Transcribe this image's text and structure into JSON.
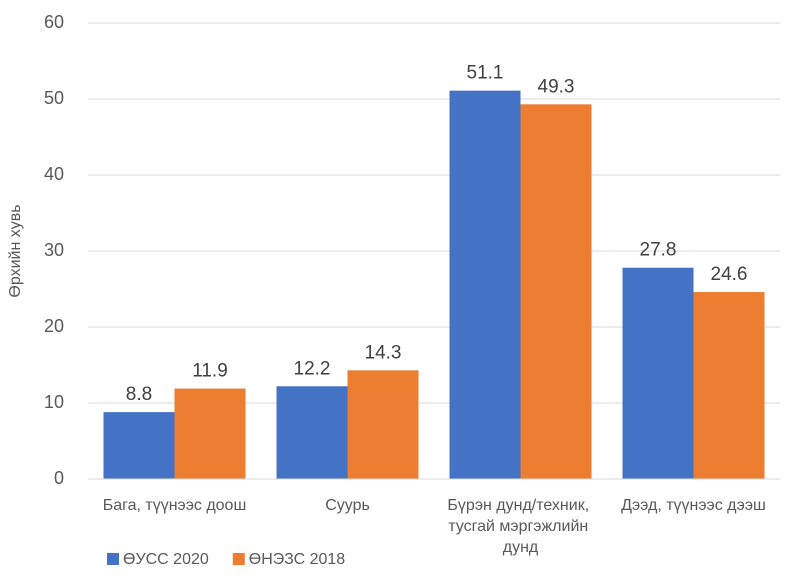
{
  "chart_data": {
    "type": "bar",
    "y_label": "Өрхийн хувь",
    "categories": [
      "Бага, түүнээс доош",
      "Суурь",
      "Бүрэн дунд/техник, тусгай мэргэжлийн дунд",
      "Дээд, түүнээс дээш"
    ],
    "series": [
      {
        "name": "ӨУСС 2020",
        "color": "#4472c4",
        "values": [
          8.8,
          12.2,
          51.1,
          27.8
        ]
      },
      {
        "name": "ӨНЭЗС 2018",
        "color": "#ed7d31",
        "values": [
          11.9,
          14.3,
          49.3,
          24.6
        ]
      }
    ],
    "ylim": [
      0,
      60
    ],
    "yticks": [
      0,
      10,
      20,
      30,
      40,
      50,
      60
    ],
    "grid": true,
    "legend": "bottom-left"
  }
}
